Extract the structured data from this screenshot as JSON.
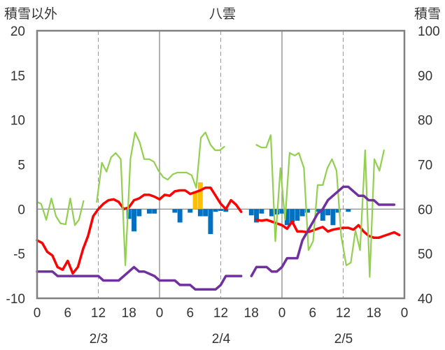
{
  "chart_data": {
    "type": "line",
    "title": "八雲",
    "left_axis_label": "積雪以外",
    "right_axis_label": "積雪",
    "left_ylim": [
      -10,
      20
    ],
    "right_ylim": [
      40,
      100
    ],
    "left_ticks": [
      "20",
      "15",
      "10",
      "5",
      "0",
      "-5",
      "-10"
    ],
    "right_ticks": [
      "100",
      "90",
      "80",
      "70",
      "60",
      "50",
      "40"
    ],
    "x_hours_range": [
      0,
      72
    ],
    "x_tick_labels": [
      "0",
      "6",
      "12",
      "18",
      "0",
      "6",
      "12",
      "18",
      "0",
      "6",
      "12",
      "18",
      "0"
    ],
    "date_labels": [
      "2/3",
      "2/4",
      "2/5"
    ],
    "grid": "dashed vertical at 12h, solid vertical at day boundaries",
    "colors": {
      "temperature": "#ff0000",
      "wind": "#92d050",
      "precipitation": "#0070c0",
      "snowfall": "#ffc000",
      "snow_depth": "#7030a0",
      "frame": "#808080"
    },
    "series": [
      {
        "key": "temperature",
        "axis": "left",
        "values": [
          [
            0,
            -3.5
          ],
          [
            1,
            -3.8
          ],
          [
            2,
            -4.8
          ],
          [
            3,
            -5.2
          ],
          [
            4,
            -6.5
          ],
          [
            5,
            -6.8
          ],
          [
            6,
            -5.8
          ],
          [
            7,
            -7.2
          ],
          [
            8,
            -6.5
          ],
          [
            9,
            -4.5
          ],
          [
            10,
            -3
          ],
          [
            11,
            -0.8
          ],
          [
            12,
            0
          ],
          [
            13,
            0.6
          ],
          [
            14,
            1
          ],
          [
            15,
            1.1
          ],
          [
            16,
            0.8
          ],
          [
            17,
            0
          ],
          [
            18,
            0.2
          ],
          [
            19,
            1
          ],
          [
            20,
            1.2
          ],
          [
            21,
            1.6
          ],
          [
            22,
            1.6
          ],
          [
            23,
            1.4
          ],
          [
            24,
            1.1
          ],
          [
            25,
            1.6
          ],
          [
            26,
            1.5
          ],
          [
            27,
            2
          ],
          [
            28,
            2.1
          ],
          [
            29,
            2.1
          ],
          [
            30,
            1.7
          ],
          [
            31,
            1.9
          ],
          [
            32,
            2.1
          ],
          [
            33,
            2.4
          ],
          [
            34,
            2.4
          ],
          [
            35,
            1.5
          ],
          [
            36,
            0.6
          ],
          [
            37,
            0
          ],
          [
            38,
            1
          ],
          [
            39,
            0.5
          ],
          [
            40,
            -0.3
          ],
          [
            null,
            null
          ],
          [
            43,
            -1.2
          ],
          [
            44,
            -1.3
          ],
          [
            45,
            -1.2
          ],
          [
            46,
            -1.4
          ],
          [
            47,
            -1.6
          ],
          [
            48,
            -1.8
          ],
          [
            49,
            -2.2
          ],
          [
            50,
            -1.4
          ],
          [
            51,
            -2.5
          ],
          [
            52,
            -2.5
          ],
          [
            53,
            -2.6
          ],
          [
            54,
            -2.4
          ],
          [
            55,
            -2.2
          ],
          [
            56,
            -2
          ],
          [
            57,
            -2.5
          ],
          [
            58,
            -2.3
          ],
          [
            59,
            -2.2
          ],
          [
            60,
            -2.1
          ],
          [
            61,
            -2.1
          ],
          [
            62,
            -2.3
          ],
          [
            63,
            -1.8
          ],
          [
            64,
            -2.5
          ],
          [
            65,
            -3
          ],
          [
            66,
            -3.2
          ],
          [
            67,
            -3.2
          ],
          [
            68,
            -3
          ],
          [
            69,
            -2.8
          ],
          [
            70,
            -2.6
          ],
          [
            71,
            -2.9
          ]
        ]
      },
      {
        "key": "wind",
        "axis": "left",
        "values": [
          [
            0,
            0.8
          ],
          [
            0.8,
            0.6
          ],
          [
            1.8,
            -1.2
          ],
          [
            2.8,
            1.2
          ],
          [
            3.7,
            -0.8
          ],
          [
            4.6,
            -1.6
          ],
          [
            5.6,
            -1.7
          ],
          [
            6.5,
            1.2
          ],
          [
            7.4,
            -1.8
          ],
          [
            8.2,
            -1.2
          ],
          [
            9.1,
            0.9
          ],
          [
            null,
            null
          ],
          [
            11.7,
            0.8
          ],
          [
            12.7,
            5.2
          ],
          [
            13.6,
            4.2
          ],
          [
            14.5,
            5.8
          ],
          [
            15.4,
            6.3
          ],
          [
            16.4,
            5.6
          ],
          [
            17.3,
            -6.3
          ],
          [
            18.3,
            5.6
          ],
          [
            19.2,
            8.6
          ],
          [
            20.1,
            7.5
          ],
          [
            21,
            5.6
          ],
          [
            22,
            5.6
          ],
          [
            22.9,
            5.3
          ],
          [
            23.8,
            4.3
          ],
          [
            24.7,
            3.6
          ],
          [
            25.6,
            3.3
          ],
          [
            26.6,
            3.9
          ],
          [
            27.5,
            4.1
          ],
          [
            28.4,
            4.1
          ],
          [
            29.3,
            4.1
          ],
          [
            30.3,
            3.8
          ],
          [
            31.2,
            2.4
          ],
          [
            32.1,
            8.0
          ],
          [
            33,
            8.6
          ],
          [
            34,
            7.2
          ],
          [
            34.9,
            6.6
          ],
          [
            35.8,
            6.6
          ],
          [
            36.7,
            7.0
          ],
          [
            null,
            null
          ],
          [
            43,
            7.2
          ],
          [
            44,
            6.9
          ],
          [
            44.9,
            6.9
          ],
          [
            45.8,
            8.3
          ],
          [
            46.7,
            -3.6
          ],
          [
            47.7,
            4.6
          ],
          [
            48.6,
            -1.2
          ],
          [
            49.5,
            6.3
          ],
          [
            50.5,
            6.0
          ],
          [
            51.3,
            6.3
          ],
          [
            52.3,
            4.6
          ],
          [
            53.2,
            -4.6
          ],
          [
            54.1,
            -3.6
          ],
          [
            55,
            2.7
          ],
          [
            56,
            2.7
          ],
          [
            56.9,
            4.6
          ],
          [
            57.8,
            5.6
          ],
          [
            58.7,
            4.3
          ],
          [
            59.6,
            -3.0
          ],
          [
            60.6,
            -6.3
          ],
          [
            61.5,
            -6.0
          ],
          [
            62.4,
            -2.4
          ],
          [
            63.3,
            -4.6
          ],
          [
            64.3,
            6.6
          ],
          [
            65.2,
            -7.6
          ],
          [
            66.1,
            5.6
          ],
          [
            67.1,
            4.3
          ],
          [
            68,
            6.6
          ]
        ]
      },
      {
        "key": "precipitation",
        "axis": "left",
        "kind": "bar",
        "values": [
          [
            18,
            -1.1
          ],
          [
            19,
            -2.5
          ],
          [
            20,
            -0.8
          ],
          [
            22,
            -0.5
          ],
          [
            23,
            -0.5
          ],
          [
            27,
            -0.4
          ],
          [
            28,
            -1.5
          ],
          [
            30,
            -0.4
          ],
          [
            32,
            -0.8
          ],
          [
            33,
            -0.8
          ],
          [
            34,
            -2.8
          ],
          [
            35,
            -0.3
          ],
          [
            36,
            -0.2
          ],
          [
            37,
            -0.3
          ],
          [
            42,
            -0.7
          ],
          [
            43,
            -1.5
          ],
          [
            44,
            -0.5
          ],
          [
            46,
            -0.8
          ],
          [
            47,
            -0.6
          ],
          [
            48,
            -0.5
          ],
          [
            49,
            -1.8
          ],
          [
            50,
            -1.5
          ],
          [
            51,
            -1.3
          ],
          [
            52,
            -0.8
          ],
          [
            53,
            -0.4
          ],
          [
            55,
            -0.3
          ],
          [
            56,
            -1.3
          ],
          [
            57,
            -0.7
          ],
          [
            58,
            -1.8
          ],
          [
            59,
            -0.4
          ],
          [
            61,
            -0.3
          ]
        ]
      },
      {
        "key": "snowfall",
        "axis": "left",
        "kind": "bar",
        "values": [
          [
            31,
            2
          ],
          [
            32,
            3
          ]
        ]
      },
      {
        "key": "snow_depth",
        "axis": "right",
        "values": [
          [
            0,
            46
          ],
          [
            3,
            46
          ],
          [
            4,
            45
          ],
          [
            12,
            45
          ],
          [
            13,
            44
          ],
          [
            16,
            44
          ],
          [
            18,
            46
          ],
          [
            19,
            47
          ],
          [
            20,
            46
          ],
          [
            21,
            46
          ],
          [
            22,
            45.5
          ],
          [
            23,
            45
          ],
          [
            24,
            44
          ],
          [
            27,
            44
          ],
          [
            28,
            43
          ],
          [
            30,
            43
          ],
          [
            31,
            42
          ],
          [
            35,
            42
          ],
          [
            36,
            43
          ],
          [
            37,
            45
          ],
          [
            40,
            45
          ],
          [
            null,
            null
          ],
          [
            42,
            45
          ],
          [
            43,
            47
          ],
          [
            45,
            47
          ],
          [
            46,
            46
          ],
          [
            47,
            46
          ],
          [
            48,
            47
          ],
          [
            49,
            49
          ],
          [
            51,
            49
          ],
          [
            52,
            53
          ],
          [
            53,
            55
          ],
          [
            54,
            57
          ],
          [
            55,
            59
          ],
          [
            56,
            60
          ],
          [
            57,
            62
          ],
          [
            58,
            63
          ],
          [
            59,
            64
          ],
          [
            60,
            65
          ],
          [
            61,
            65
          ],
          [
            62,
            64
          ],
          [
            63,
            63
          ],
          [
            64,
            63
          ],
          [
            65,
            62
          ],
          [
            66,
            62
          ],
          [
            67,
            61
          ],
          [
            69,
            61
          ],
          [
            70,
            61
          ]
        ]
      }
    ]
  }
}
